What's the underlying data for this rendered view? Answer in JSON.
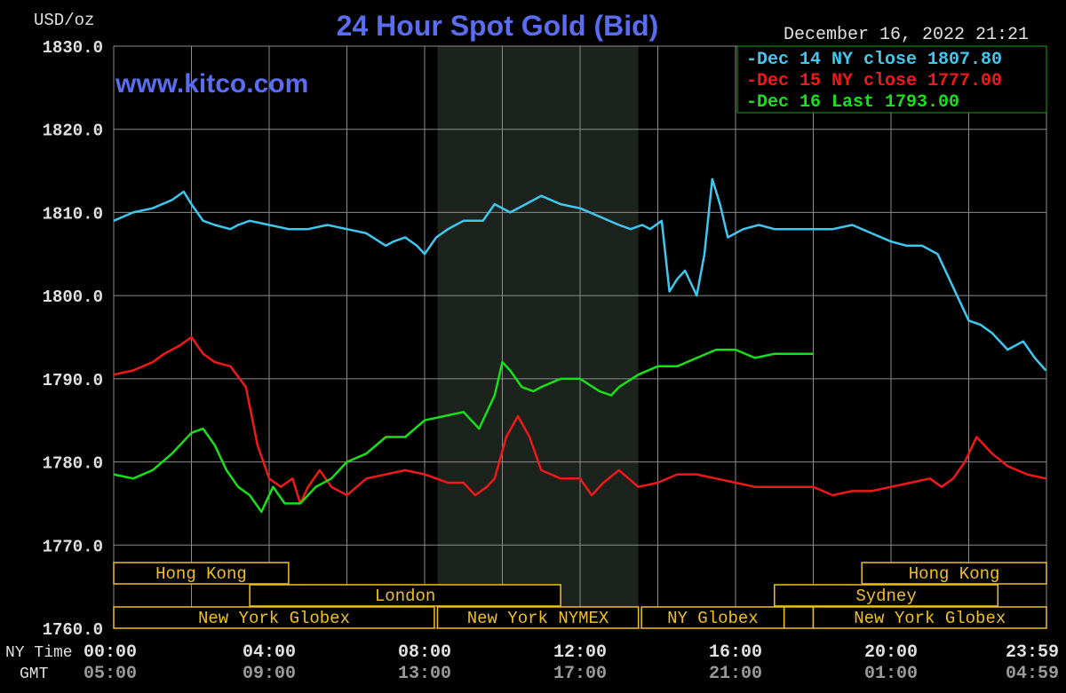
{
  "title": "24 Hour Spot Gold (Bid)",
  "watermark": "www.kitco.com",
  "unit_label": "USD/oz",
  "timestamp": "December 16, 2022 21:21",
  "row_labels": {
    "ny": "NY Time",
    "gmt": "GMT"
  },
  "colors": {
    "background": "#000000",
    "grid": "#8c8c8c",
    "title": "#5a6cf0",
    "watermark": "#5a6cf0",
    "text": "#e0e0e0",
    "session_bar": "#f0c020",
    "nymex_shade": "#1c221c",
    "gmt_tick": "#9a9a9a"
  },
  "sessions": [
    {
      "label": "Hong Kong",
      "row": 0,
      "start_hr": 0,
      "end_hr": 4.5
    },
    {
      "label": "London",
      "row": 1,
      "start_hr": 3.5,
      "end_hr": 11.5
    },
    {
      "label": "New York Globex",
      "row": 2,
      "start_hr": 0,
      "end_hr": 8.25
    },
    {
      "label": "New York NYMEX",
      "row": 2,
      "start_hr": 8.33,
      "end_hr": 13.5
    },
    {
      "label": "NY Globex",
      "row": 2,
      "start_hr": 13.58,
      "end_hr": 17.25
    },
    {
      "label": "",
      "row": 2,
      "start_hr": 17.25,
      "end_hr": 18.0
    },
    {
      "label": "New York Globex",
      "row": 2,
      "start_hr": 18.0,
      "end_hr": 24
    },
    {
      "label": "Hong Kong",
      "row": 0,
      "start_hr": 19.25,
      "end_hr": 24
    },
    {
      "label": "Sydney",
      "row": 1,
      "start_hr": 17.0,
      "end_hr": 22.75
    }
  ],
  "nymex_shade": {
    "start_hr": 8.33,
    "end_hr": 13.5
  },
  "chart_data": {
    "type": "line",
    "title": "24 Hour Spot Gold (Bid)",
    "ylabel": "USD/oz",
    "xlim": [
      0,
      24
    ],
    "ylim": [
      1760,
      1830
    ],
    "y_ticks": [
      "1830.0",
      "1820.0",
      "1810.0",
      "1800.0",
      "1790.0",
      "1780.0",
      "1770.0",
      "1760.0"
    ],
    "x_ticks_ny": [
      "00:00",
      "04:00",
      "08:00",
      "12:00",
      "16:00",
      "20:00",
      "23:59"
    ],
    "x_ticks_gmt": [
      "05:00",
      "09:00",
      "13:00",
      "17:00",
      "21:00",
      "01:00",
      "04:59"
    ],
    "x_tick_hours": [
      0,
      4,
      8,
      12,
      16,
      20,
      23.983
    ],
    "legend": {
      "position": "top-right"
    },
    "series": [
      {
        "name": "Dec 14 NY close 1807.80",
        "legend_label": "-Dec 14 NY close 1807.80",
        "color": "#3ec8f0",
        "x": [
          0,
          0.5,
          1,
          1.5,
          1.8,
          2.0,
          2.3,
          2.6,
          3,
          3.2,
          3.5,
          4,
          4.5,
          5,
          5.5,
          6,
          6.5,
          7,
          7.2,
          7.5,
          7.8,
          8.0,
          8.3,
          8.6,
          9,
          9.5,
          9.8,
          10.2,
          10.6,
          11,
          11.5,
          12,
          12.5,
          13,
          13.3,
          13.6,
          13.8,
          14.1,
          14.3,
          14.5,
          14.7,
          15.0,
          15.2,
          15.4,
          15.6,
          15.8,
          16.2,
          16.6,
          17,
          17.5,
          18,
          18.5,
          19,
          19.5,
          20,
          20.4,
          20.8,
          21.2,
          21.6,
          22.0,
          22.3,
          22.6,
          23.0,
          23.4,
          23.7,
          23.983
        ],
        "y": [
          1809,
          1810,
          1810.5,
          1811.5,
          1812.5,
          1811,
          1809,
          1808.5,
          1808,
          1808.5,
          1809,
          1808.5,
          1808,
          1808,
          1808.5,
          1808,
          1807.5,
          1806,
          1806.5,
          1807,
          1806,
          1805,
          1807,
          1808,
          1809,
          1809,
          1811,
          1810,
          1811,
          1812,
          1811,
          1810.5,
          1809.5,
          1808.5,
          1808,
          1808.5,
          1808,
          1809,
          1800.5,
          1802,
          1803,
          1800,
          1805,
          1814,
          1811,
          1807,
          1808,
          1808.5,
          1808,
          1808,
          1808,
          1808,
          1808.5,
          1807.5,
          1806.5,
          1806,
          1806,
          1805,
          1801,
          1797,
          1796.5,
          1795.5,
          1793.5,
          1794.5,
          1792.5,
          1791
        ]
      },
      {
        "name": "Dec 15 NY close 1777.00",
        "legend_label": "-Dec 15 NY close 1777.00",
        "color": "#f01818",
        "x": [
          0,
          0.5,
          1,
          1.3,
          1.7,
          2.0,
          2.3,
          2.6,
          3.0,
          3.4,
          3.7,
          4.0,
          4.3,
          4.6,
          4.8,
          5.0,
          5.3,
          5.6,
          6.0,
          6.5,
          7.0,
          7.5,
          8.0,
          8.3,
          8.6,
          9.0,
          9.3,
          9.6,
          9.8,
          10.1,
          10.4,
          10.7,
          11.0,
          11.5,
          12.0,
          12.3,
          12.6,
          13.0,
          13.5,
          14.0,
          14.5,
          15.0,
          15.5,
          16.0,
          16.5,
          17.0,
          17.5,
          18.0,
          18.5,
          19.0,
          19.5,
          20.0,
          20.5,
          21.0,
          21.3,
          21.6,
          21.9,
          22.2,
          22.6,
          23.0,
          23.5,
          23.983
        ],
        "y": [
          1790.5,
          1791,
          1792,
          1793,
          1794,
          1795,
          1793,
          1792,
          1791.5,
          1789,
          1782,
          1778,
          1777,
          1778,
          1775,
          1777,
          1779,
          1777,
          1776,
          1778,
          1778.5,
          1779,
          1778.5,
          1778,
          1777.5,
          1777.5,
          1776,
          1777,
          1778,
          1783,
          1785.5,
          1783,
          1779,
          1778,
          1778,
          1776,
          1777.5,
          1779,
          1777,
          1777.5,
          1778.5,
          1778.5,
          1778,
          1777.5,
          1777,
          1777,
          1777,
          1777,
          1776,
          1776.5,
          1776.5,
          1777,
          1777.5,
          1778,
          1777,
          1778,
          1780,
          1783,
          1781,
          1779.5,
          1778.5,
          1778
        ]
      },
      {
        "name": "Dec 16 Last 1793.00",
        "legend_label": "-Dec 16 Last 1793.00",
        "color": "#18e018",
        "x": [
          0,
          0.5,
          1,
          1.5,
          2.0,
          2.3,
          2.6,
          2.9,
          3.2,
          3.5,
          3.8,
          4.1,
          4.4,
          4.8,
          5.2,
          5.6,
          6.0,
          6.5,
          7.0,
          7.5,
          8.0,
          8.5,
          9.0,
          9.4,
          9.8,
          10.0,
          10.2,
          10.5,
          10.8,
          11.0,
          11.5,
          12.0,
          12.5,
          12.8,
          13.0,
          13.5,
          14.0,
          14.5,
          15.0,
          15.5,
          16.0,
          16.5,
          17.0,
          17.5,
          18.0
        ],
        "y": [
          1778.5,
          1778,
          1779,
          1781,
          1783.5,
          1784,
          1782,
          1779,
          1777,
          1776,
          1774,
          1777,
          1775,
          1775,
          1777,
          1778,
          1780,
          1781,
          1783,
          1783,
          1785,
          1785.5,
          1786,
          1784,
          1788,
          1792,
          1791,
          1789,
          1788.5,
          1789,
          1790,
          1790,
          1788.5,
          1788,
          1789,
          1790.5,
          1791.5,
          1791.5,
          1792.5,
          1793.5,
          1793.5,
          1792.5,
          1793,
          1793,
          1793
        ]
      }
    ]
  }
}
